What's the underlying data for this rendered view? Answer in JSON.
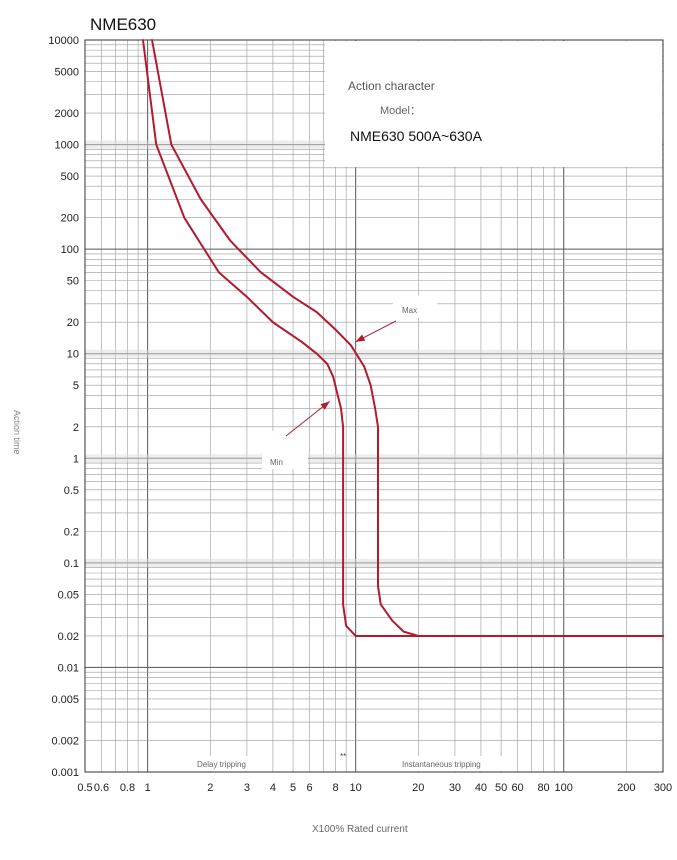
{
  "chart_data": {
    "type": "line",
    "title": "NME630",
    "xlabel": "X100% Rated current",
    "ylabel": "Action time",
    "x_scale": "log",
    "y_scale": "log",
    "xlim": [
      0.5,
      300
    ],
    "ylim": [
      0.001,
      10000
    ],
    "grid": true,
    "x_ticks": [
      0.5,
      0.6,
      0.8,
      1,
      2,
      3,
      4,
      5,
      6,
      8,
      10,
      20,
      30,
      40,
      50,
      60,
      80,
      100,
      200,
      300
    ],
    "x_tick_labels": [
      "0.5",
      "0.6",
      "0.8",
      "1",
      "2",
      "3",
      "4",
      "5",
      "6",
      "8",
      "10",
      "20",
      "30",
      "40",
      "50",
      "60",
      "80",
      "100",
      "200",
      "300"
    ],
    "y_ticks": [
      10000,
      5000,
      2000,
      1000,
      500,
      200,
      100,
      50,
      20,
      10,
      5,
      2,
      1,
      0.5,
      0.2,
      0.1,
      0.05,
      0.02,
      0.01,
      0.005,
      0.002,
      0.001
    ],
    "y_tick_labels": [
      "10000",
      "5000",
      "2000",
      "1000",
      "500",
      "200",
      "100",
      "50",
      "20",
      "10",
      "5",
      "2",
      "1",
      "0.5",
      "0.2",
      "0.1",
      "0.05",
      "0.02",
      "0.01",
      "0.005",
      "0.002",
      "0.001"
    ],
    "series": [
      {
        "name": "Max",
        "color": "#b3192f",
        "points": [
          [
            1.05,
            10000
          ],
          [
            1.3,
            1000
          ],
          [
            1.8,
            300
          ],
          [
            2.5,
            120
          ],
          [
            3.5,
            60
          ],
          [
            5,
            35
          ],
          [
            6.5,
            25
          ],
          [
            8,
            17
          ],
          [
            9.5,
            12
          ],
          [
            11,
            7.5
          ],
          [
            11.8,
            5
          ],
          [
            12.4,
            3
          ],
          [
            12.8,
            2
          ],
          [
            12.8,
            0.06
          ],
          [
            13.2,
            0.04
          ],
          [
            15,
            0.028
          ],
          [
            17,
            0.022
          ],
          [
            20,
            0.02
          ],
          [
            300,
            0.02
          ]
        ]
      },
      {
        "name": "Min",
        "color": "#b3192f",
        "points": [
          [
            0.95,
            10000
          ],
          [
            1.1,
            1000
          ],
          [
            1.5,
            200
          ],
          [
            2.2,
            60
          ],
          [
            3,
            35
          ],
          [
            4,
            20
          ],
          [
            5.5,
            13
          ],
          [
            6.5,
            10
          ],
          [
            7.3,
            8
          ],
          [
            7.8,
            6
          ],
          [
            8.2,
            4
          ],
          [
            8.5,
            3
          ],
          [
            8.7,
            2
          ],
          [
            8.7,
            0.04
          ],
          [
            9,
            0.025
          ],
          [
            10,
            0.02
          ],
          [
            300,
            0.02
          ]
        ]
      }
    ],
    "annotations": [
      {
        "text": "Max",
        "arrow_to": [
          10,
          13
        ]
      },
      {
        "text": "Min",
        "arrow_to": [
          7.5,
          3.5
        ]
      }
    ],
    "legend_box": {
      "line1": "Action character",
      "line2": "Model：",
      "line3": "NME630   500A~630A"
    },
    "regions": {
      "left": "Delay tripping",
      "divider": "**",
      "right": "Instantaneous tripping"
    }
  }
}
